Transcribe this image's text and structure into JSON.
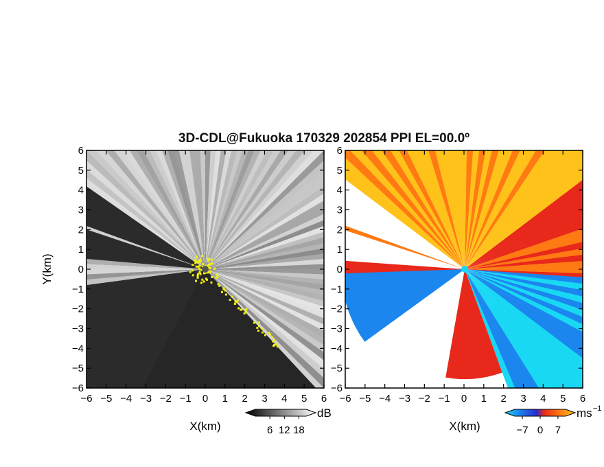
{
  "chart_data": [
    {
      "type": "heatmap",
      "field": "reflectivity",
      "title": "3D-CDL@Fukuoka 170329 202854 PPI EL=00.0º",
      "xlabel": "X(km)",
      "ylabel": "Y(km)",
      "xlim": [
        -6,
        6
      ],
      "ylim": [
        -6,
        6
      ],
      "x_ticks": [
        "−6",
        "−5",
        "−4",
        "−3",
        "−2",
        "−1",
        "0",
        "1",
        "2",
        "3",
        "4",
        "5",
        "6"
      ],
      "y_ticks": [
        "6",
        "5",
        "4",
        "3",
        "2",
        "1",
        "0",
        "−1",
        "−2",
        "−3",
        "−4",
        "−5",
        "−6"
      ],
      "colorbar": {
        "unit": "dB",
        "tick_labels": [
          "6",
          "12",
          "18"
        ],
        "tick_values": [
          6,
          12,
          18
        ],
        "range": [
          0,
          21
        ],
        "colors": [
          "#000000",
          "#ffffff"
        ]
      },
      "highlight_color": "#f3ef10"
    },
    {
      "type": "heatmap",
      "field": "doppler_velocity",
      "xlabel": "X(km)",
      "xlim": [
        -6,
        6
      ],
      "ylim": [
        -6,
        6
      ],
      "x_ticks": [
        "−6",
        "−5",
        "−4",
        "−3",
        "−2",
        "−1",
        "0",
        "1",
        "2",
        "3",
        "4",
        "5",
        "6"
      ],
      "y_ticks": [
        "6",
        "5",
        "4",
        "3",
        "2",
        "1",
        "0",
        "−1",
        "−2",
        "−3",
        "−4",
        "−5",
        "−6"
      ],
      "colorbar": {
        "unit": "ms",
        "unit_exponent": "−1",
        "tick_labels": [
          "−7",
          "0",
          "7"
        ],
        "tick_values": [
          -7,
          0,
          7
        ],
        "range": [
          -10,
          10
        ],
        "colors": [
          "#19d8f4",
          "#1a86ee",
          "#2a2acc",
          "#e8281a",
          "#ff7a12",
          "#ffc21a"
        ]
      }
    }
  ]
}
